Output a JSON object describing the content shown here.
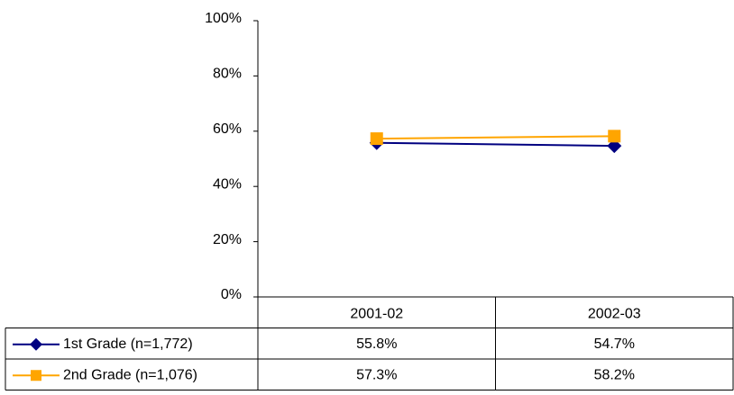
{
  "chart_data": {
    "type": "line",
    "categories": [
      "2001-02",
      "2002-03"
    ],
    "series": [
      {
        "name": "1st Grade (n=1,772)",
        "color": "#000080",
        "marker": "diamond",
        "values": [
          55.8,
          54.7
        ],
        "value_labels": [
          "55.8%",
          "54.7%"
        ]
      },
      {
        "name": "2nd Grade (n=1,076)",
        "color": "#ffa500",
        "marker": "square",
        "values": [
          57.3,
          58.2
        ],
        "value_labels": [
          "57.3%",
          "58.2%"
        ]
      }
    ],
    "ylim": [
      0,
      100
    ],
    "yticks": [
      {
        "value": 0,
        "label": "0%"
      },
      {
        "value": 20,
        "label": "20%"
      },
      {
        "value": 40,
        "label": "40%"
      },
      {
        "value": 60,
        "label": "60%"
      },
      {
        "value": 80,
        "label": "80%"
      },
      {
        "value": 100,
        "label": "100%"
      }
    ],
    "grid": false,
    "data_table": true
  }
}
